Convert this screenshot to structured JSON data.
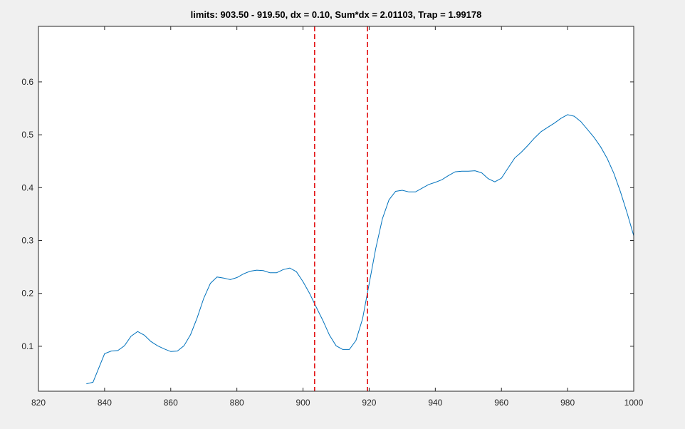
{
  "title": "limits: 903.50 - 919.50, dx = 0.10, Sum*dx = 2.01103, Trap = 1.99178",
  "chart_data": {
    "type": "line",
    "title": "limits: 903.50 - 919.50, dx = 0.10, Sum*dx = 2.01103, Trap = 1.99178",
    "xlabel": "",
    "ylabel": "",
    "xlim": [
      820,
      1000
    ],
    "ylim": [
      0.015,
      0.705
    ],
    "x_ticks": [
      820,
      840,
      860,
      880,
      900,
      920,
      940,
      960,
      980,
      1000
    ],
    "x_tick_labels": [
      "820",
      "840",
      "860",
      "880",
      "900",
      "920",
      "940",
      "960",
      "980",
      "1000"
    ],
    "y_ticks": [
      0.1,
      0.2,
      0.3,
      0.4,
      0.5,
      0.6
    ],
    "y_tick_labels": [
      "0.1",
      "0.2",
      "0.3",
      "0.4",
      "0.5",
      "0.6"
    ],
    "grid": false,
    "series": [
      {
        "color": "#0072BD",
        "x": [
          834.5,
          836.5,
          840,
          842,
          844,
          846,
          848,
          850,
          852,
          854,
          856,
          858,
          860,
          862,
          864,
          866,
          868,
          870,
          872,
          874,
          876,
          878,
          880,
          882,
          884,
          886,
          888,
          890,
          892,
          894,
          896,
          898,
          900,
          902,
          904,
          906,
          908,
          910,
          912,
          914,
          916,
          918,
          920,
          922,
          924,
          926,
          928,
          930,
          932,
          934,
          936,
          938,
          940,
          942,
          944,
          946,
          948,
          950,
          952,
          954,
          956,
          958,
          960,
          962,
          964,
          966,
          968,
          970,
          972,
          974,
          976,
          978,
          980,
          982,
          984,
          986,
          988,
          990,
          992,
          994,
          996,
          998,
          1000
        ],
        "y": [
          0.029,
          0.032,
          0.086,
          0.091,
          0.092,
          0.101,
          0.119,
          0.128,
          0.121,
          0.109,
          0.101,
          0.095,
          0.09,
          0.091,
          0.101,
          0.122,
          0.154,
          0.191,
          0.219,
          0.231,
          0.229,
          0.226,
          0.23,
          0.237,
          0.242,
          0.244,
          0.243,
          0.239,
          0.239,
          0.245,
          0.248,
          0.241,
          0.222,
          0.2,
          0.174,
          0.149,
          0.121,
          0.101,
          0.094,
          0.094,
          0.111,
          0.152,
          0.218,
          0.285,
          0.341,
          0.377,
          0.393,
          0.395,
          0.392,
          0.392,
          0.399,
          0.406,
          0.41,
          0.415,
          0.423,
          0.43,
          0.431,
          0.431,
          0.432,
          0.428,
          0.417,
          0.411,
          0.418,
          0.437,
          0.456,
          0.467,
          0.48,
          0.494,
          0.506,
          0.514,
          0.522,
          0.531,
          0.538,
          0.535,
          0.525,
          0.51,
          0.495,
          0.477,
          0.455,
          0.427,
          0.392,
          0.352,
          0.309
        ]
      }
    ],
    "vlines": [
      {
        "x": 903.5,
        "style": "dashed",
        "color": "#e41a1c"
      },
      {
        "x": 919.5,
        "style": "dashed",
        "color": "#e41a1c"
      }
    ],
    "colors": {
      "axes_bg": "#ffffff",
      "figure_bg": "#f0f0f0",
      "axis": "#262626"
    }
  }
}
